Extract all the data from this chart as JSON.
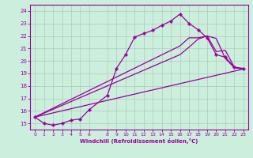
{
  "xlabel": "Windchill (Refroidissement éolien,°C)",
  "bg_color": "#cceedd",
  "line_color": "#990099",
  "grid_color": "#aaccbb",
  "xlim": [
    -0.5,
    23.5
  ],
  "ylim": [
    14.5,
    24.5
  ],
  "xticks": [
    0,
    1,
    2,
    3,
    4,
    5,
    6,
    8,
    9,
    10,
    11,
    12,
    13,
    14,
    15,
    16,
    17,
    18,
    19,
    20,
    21,
    22,
    23
  ],
  "yticks": [
    15,
    16,
    17,
    18,
    19,
    20,
    21,
    22,
    23,
    24
  ],
  "series": [
    {
      "x": [
        0,
        1,
        2,
        3,
        4,
        5,
        6,
        8,
        9,
        10,
        11,
        12,
        13,
        14,
        15,
        16,
        17,
        18,
        19,
        20,
        21,
        22,
        23
      ],
      "y": [
        15.5,
        15.0,
        14.85,
        15.0,
        15.25,
        15.35,
        16.1,
        17.25,
        19.4,
        20.5,
        21.9,
        22.2,
        22.45,
        22.85,
        23.2,
        23.75,
        23.0,
        22.5,
        21.85,
        20.5,
        20.3,
        19.5,
        19.4
      ],
      "marker": "P",
      "markersize": 2.5,
      "lw": 0.9
    },
    {
      "x": [
        0,
        23
      ],
      "y": [
        15.5,
        19.35
      ],
      "marker": null,
      "lw": 0.9
    },
    {
      "x": [
        0,
        16,
        17,
        18,
        19,
        20,
        21,
        22,
        23
      ],
      "y": [
        15.5,
        21.2,
        21.85,
        21.85,
        22.0,
        20.75,
        20.85,
        19.5,
        19.35
      ],
      "marker": null,
      "lw": 0.9
    },
    {
      "x": [
        0,
        16,
        17,
        18,
        19,
        20,
        21,
        22,
        23
      ],
      "y": [
        15.5,
        20.5,
        21.1,
        21.75,
        22.0,
        21.8,
        20.2,
        19.45,
        19.35
      ],
      "marker": null,
      "lw": 0.9
    }
  ]
}
